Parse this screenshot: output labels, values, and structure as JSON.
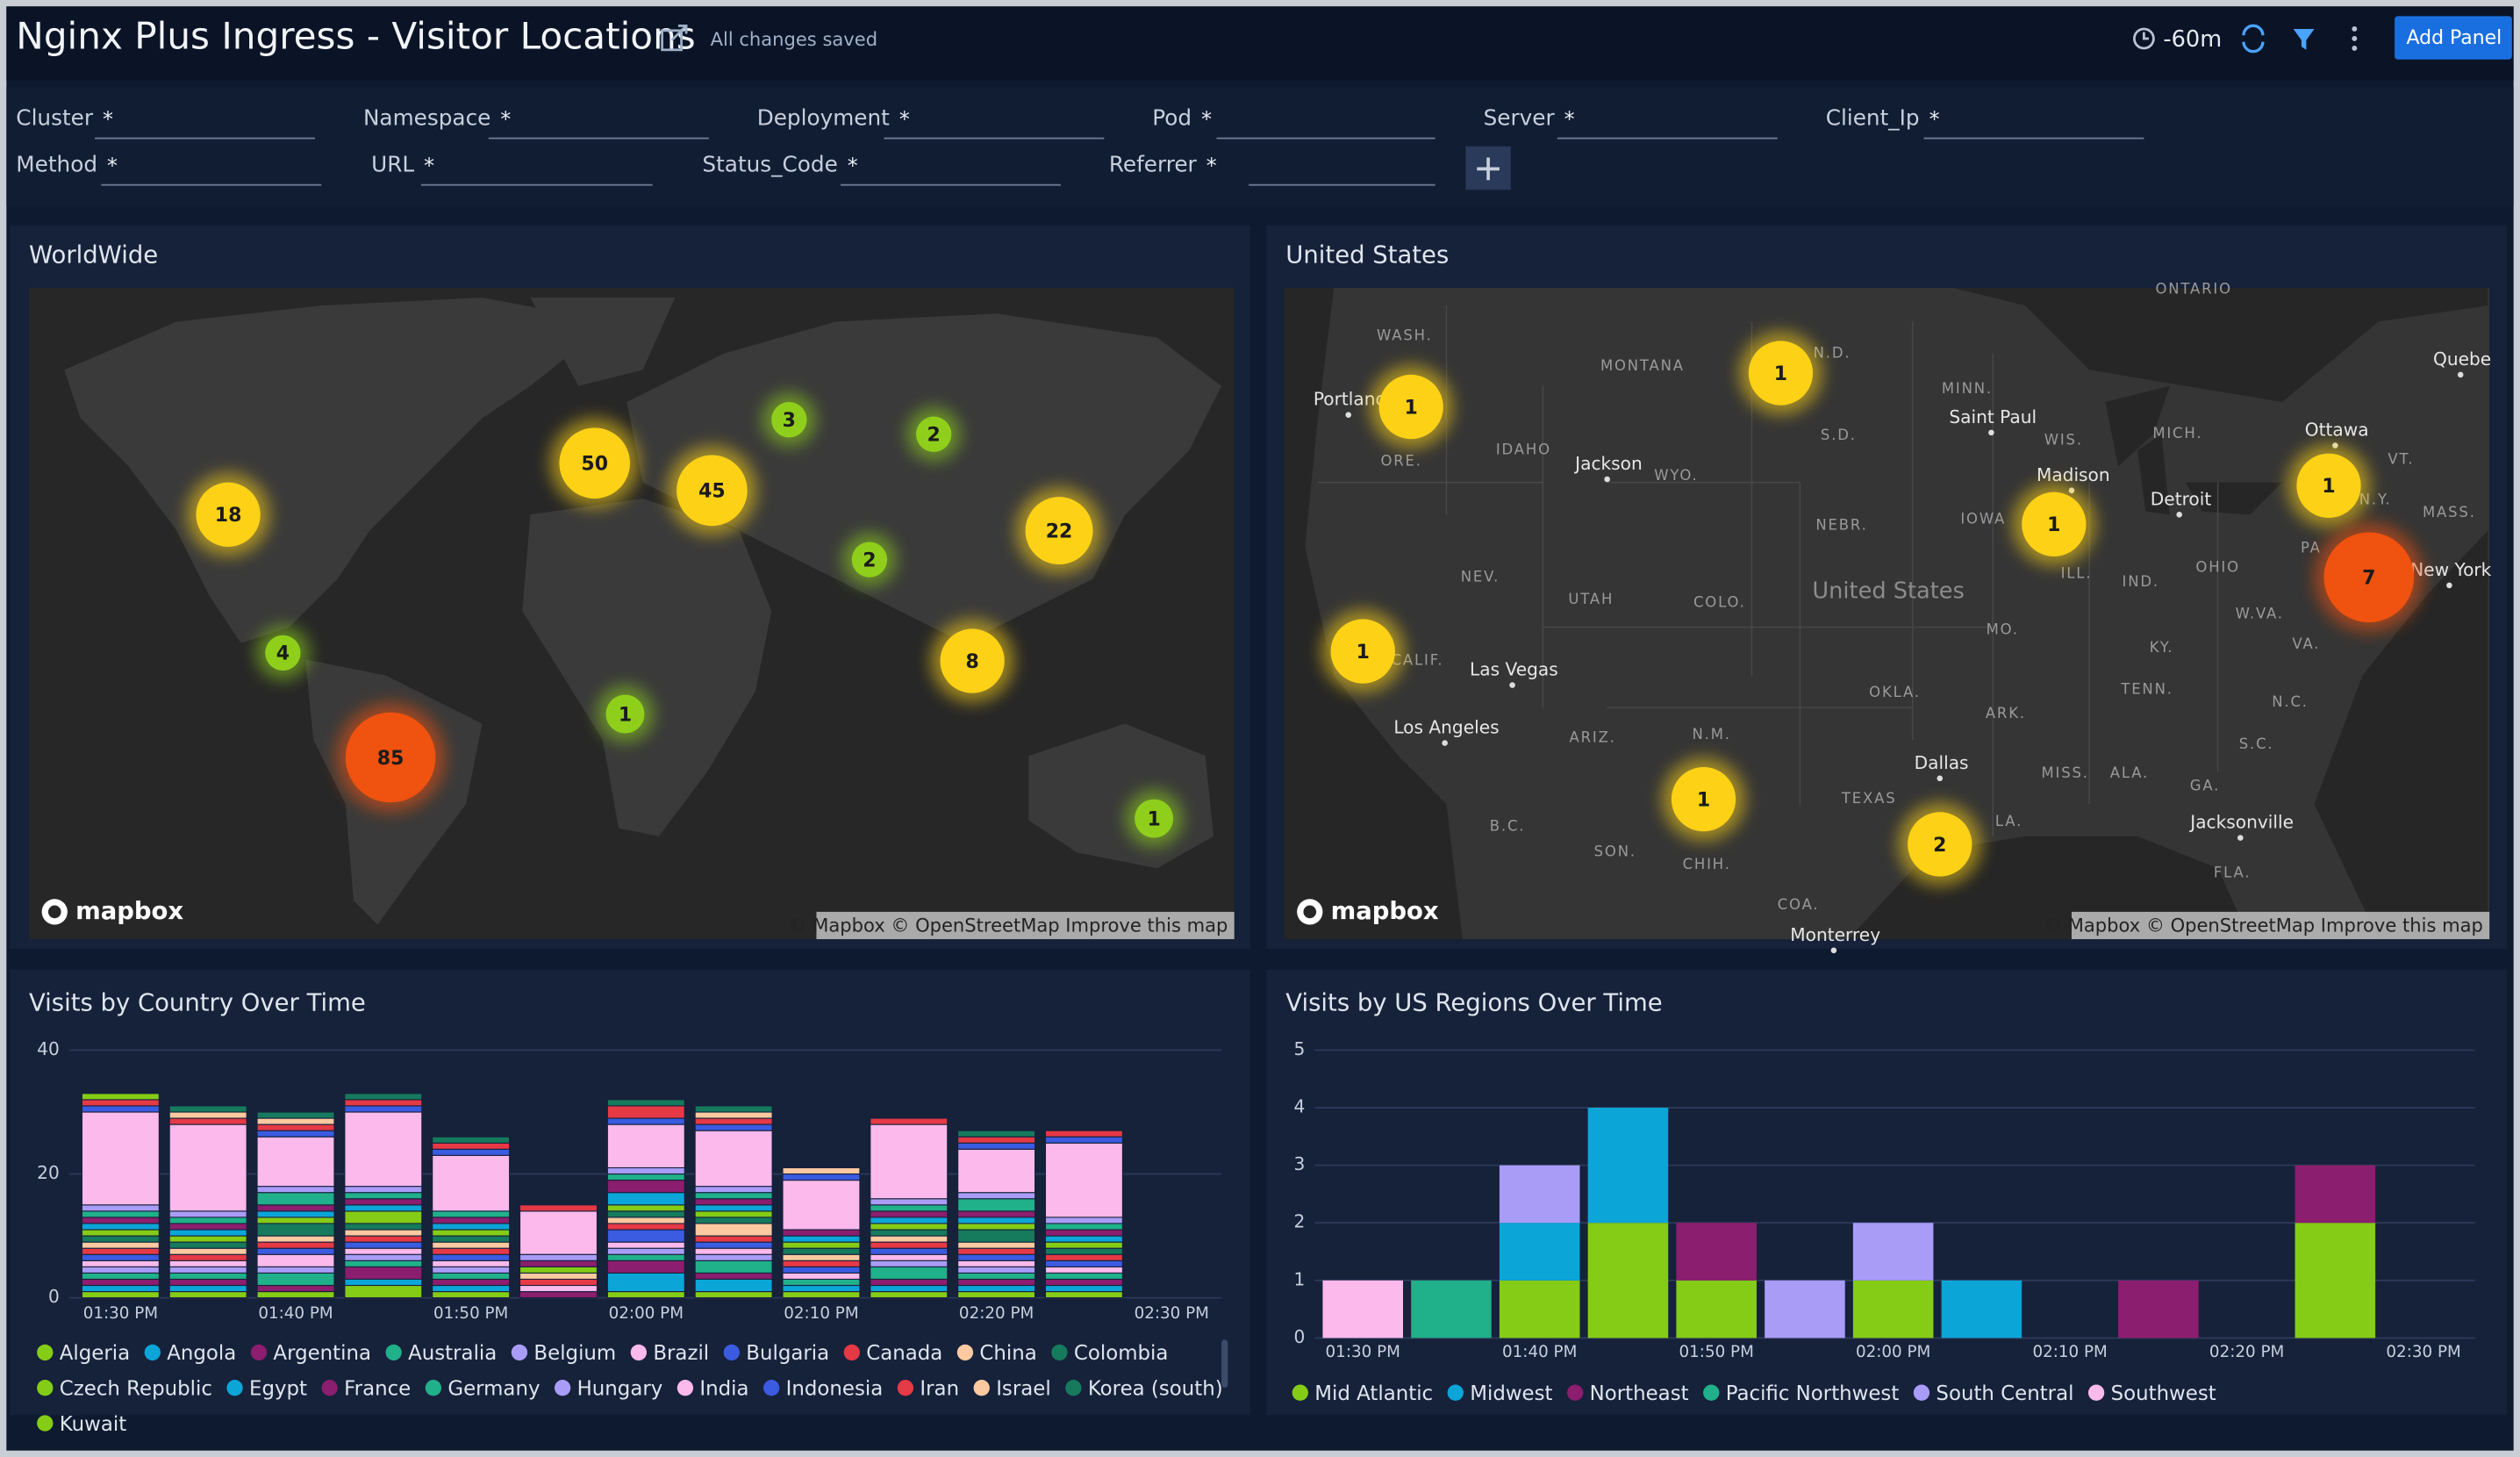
{
  "header": {
    "title": "Nginx Plus Ingress - Visitor Locations",
    "status": "All changes saved",
    "time_range": "-60m",
    "add_panel": "Add Panel"
  },
  "filters": [
    {
      "label": "Cluster",
      "value": "*"
    },
    {
      "label": "Namespace",
      "value": "*"
    },
    {
      "label": "Deployment",
      "value": "*"
    },
    {
      "label": "Pod",
      "value": "*"
    },
    {
      "label": "Server",
      "value": "*"
    },
    {
      "label": "Client_Ip",
      "value": "*"
    },
    {
      "label": "Method",
      "value": "*"
    },
    {
      "label": "URL",
      "value": "*"
    },
    {
      "label": "Status_Code",
      "value": "*"
    },
    {
      "label": "Referrer",
      "value": "*"
    }
  ],
  "maps": [
    {
      "title": "WorldWide",
      "logo": "mapbox",
      "attribution": "© Mapbox © OpenStreetMap Improve this map",
      "markers": [
        {
          "count": 18,
          "color": "#fcd116"
        },
        {
          "count": 50,
          "color": "#fcd116"
        },
        {
          "count": 45,
          "color": "#fcd116"
        },
        {
          "count": 3,
          "color": "#8fcf1b"
        },
        {
          "count": 2,
          "color": "#8fcf1b"
        },
        {
          "count": 22,
          "color": "#fcd116"
        },
        {
          "count": 2,
          "color": "#8fcf1b"
        },
        {
          "count": 4,
          "color": "#8fcf1b"
        },
        {
          "count": 8,
          "color": "#fcd116"
        },
        {
          "count": 1,
          "color": "#8fcf1b"
        },
        {
          "count": 85,
          "color": "#f0520f"
        },
        {
          "count": 1,
          "color": "#8fcf1b"
        }
      ],
      "labels": []
    },
    {
      "title": "United States",
      "logo": "mapbox",
      "attribution": "© Mapbox © OpenStreetMap Improve this map",
      "markers": [
        {
          "count": 1,
          "color": "#fcd116"
        },
        {
          "count": 1,
          "color": "#fcd116"
        },
        {
          "count": 1,
          "color": "#fcd116"
        },
        {
          "count": 1,
          "color": "#fcd116"
        },
        {
          "count": 7,
          "color": "#f0520f"
        },
        {
          "count": 1,
          "color": "#fcd116"
        },
        {
          "count": 1,
          "color": "#fcd116"
        },
        {
          "count": 2,
          "color": "#fcd116"
        }
      ],
      "labels": [
        "WASH.",
        "MONTANA",
        "N.D.",
        "MINN.",
        "Portland",
        "IDAHO",
        "ORE.",
        "S.D.",
        "Saint Paul",
        "WIS.",
        "MICH.",
        "Ottawa",
        "Quebe",
        "Jackson",
        "WYO.",
        "Madison",
        "Detroit",
        "NEBR.",
        "IOWA",
        "VT.",
        "N.Y.",
        "MASS.",
        "PA",
        "New York",
        "NEV.",
        "UTAH",
        "COLO.",
        "United States",
        "ILL.",
        "IND.",
        "OHIO",
        "W.VA.",
        "MO.",
        "KY.",
        "VA.",
        "CALIF.",
        "Las Vegas",
        "TENN.",
        "OKLA.",
        "N.C.",
        "Los Angeles",
        "ARIZ.",
        "N.M.",
        "ARK.",
        "S.C.",
        "Dallas",
        "MISS.",
        "ALA.",
        "GA.",
        "TEXAS",
        "LA.",
        "Jacksonville",
        "B.C.",
        "SON.",
        "CHIH.",
        "FLA.",
        "COA.",
        "Monterrey",
        "ONTARIO"
      ]
    }
  ],
  "chart_data": [
    {
      "type": "bar",
      "stacked": true,
      "title": "Visits by Country Over Time",
      "categories": [
        "01:30 PM",
        null,
        "01:40 PM",
        null,
        "01:50 PM",
        null,
        "02:00 PM",
        null,
        "02:10 PM",
        null,
        "02:20 PM",
        null,
        "02:30 PM"
      ],
      "ylim": [
        0,
        40
      ],
      "yticks": [
        0,
        20,
        40
      ],
      "grid": true,
      "series": [
        {
          "name": "Algeria",
          "color": "#84cc16",
          "values": [
            1,
            1,
            1,
            2,
            1,
            0,
            1,
            1,
            1,
            1,
            1,
            1,
            null
          ]
        },
        {
          "name": "Angola",
          "color": "#0ba5d8",
          "values": [
            1,
            1,
            0,
            1,
            1,
            0,
            3,
            2,
            1,
            1,
            1,
            1,
            null
          ]
        },
        {
          "name": "Argentina",
          "color": "#8b1e6e",
          "values": [
            1,
            1,
            1,
            2,
            1,
            1,
            2,
            1,
            0,
            1,
            1,
            1,
            null
          ]
        },
        {
          "name": "Australia",
          "color": "#20b08a",
          "values": [
            1,
            1,
            2,
            1,
            1,
            0,
            1,
            2,
            1,
            2,
            1,
            1,
            null
          ]
        },
        {
          "name": "Belgium",
          "color": "#a99cf7",
          "values": [
            1,
            1,
            1,
            1,
            1,
            0,
            1,
            1,
            0,
            1,
            1,
            0,
            null
          ]
        },
        {
          "name": "Brazil",
          "color": "#fbb9ec",
          "values": [
            1,
            1,
            2,
            1,
            1,
            1,
            1,
            1,
            1,
            1,
            1,
            1,
            null
          ]
        },
        {
          "name": "Bulgaria",
          "color": "#3b5be0",
          "values": [
            1,
            0,
            1,
            1,
            1,
            0,
            2,
            1,
            1,
            1,
            1,
            1,
            null
          ]
        },
        {
          "name": "Canada",
          "color": "#e53945",
          "values": [
            1,
            1,
            1,
            1,
            1,
            1,
            1,
            1,
            1,
            1,
            1,
            1,
            null
          ]
        },
        {
          "name": "China",
          "color": "#fcc9a0",
          "values": [
            1,
            1,
            1,
            1,
            1,
            1,
            1,
            2,
            1,
            1,
            1,
            0,
            null
          ]
        },
        {
          "name": "Colombia",
          "color": "#167a5d",
          "values": [
            1,
            1,
            2,
            1,
            1,
            0,
            1,
            1,
            1,
            1,
            2,
            1,
            null
          ]
        },
        {
          "name": "Czech Republic",
          "color": "#84cc16",
          "values": [
            1,
            1,
            1,
            2,
            1,
            1,
            1,
            1,
            1,
            1,
            1,
            1,
            null
          ]
        },
        {
          "name": "Egypt",
          "color": "#0ba5d8",
          "values": [
            1,
            1,
            1,
            1,
            1,
            0,
            2,
            1,
            1,
            1,
            1,
            1,
            null
          ]
        },
        {
          "name": "France",
          "color": "#8b1e6e",
          "values": [
            1,
            1,
            1,
            1,
            1,
            1,
            2,
            1,
            1,
            1,
            1,
            1,
            null
          ]
        },
        {
          "name": "Germany",
          "color": "#20b08a",
          "values": [
            1,
            1,
            2,
            1,
            1,
            0,
            1,
            1,
            0,
            1,
            2,
            1,
            null
          ]
        },
        {
          "name": "Hungary",
          "color": "#a99cf7",
          "values": [
            1,
            1,
            1,
            1,
            0,
            1,
            1,
            1,
            0,
            1,
            1,
            1,
            null
          ]
        },
        {
          "name": "India",
          "color": "#fbb9ec",
          "values": [
            15,
            14,
            8,
            12,
            9,
            7,
            7,
            9,
            8,
            12,
            7,
            12,
            null
          ]
        },
        {
          "name": "Indonesia",
          "color": "#3b5be0",
          "values": [
            1,
            0,
            1,
            1,
            1,
            0,
            1,
            1,
            1,
            0,
            1,
            1,
            null
          ]
        },
        {
          "name": "Iran",
          "color": "#e53945",
          "values": [
            1,
            1,
            1,
            1,
            1,
            1,
            2,
            1,
            0,
            1,
            1,
            1,
            null
          ]
        },
        {
          "name": "Israel",
          "color": "#fcc9a0",
          "values": [
            0,
            1,
            1,
            0,
            0,
            0,
            0,
            1,
            1,
            0,
            0,
            0,
            null
          ]
        },
        {
          "name": "Korea (south)",
          "color": "#167a5d",
          "values": [
            0,
            1,
            1,
            1,
            1,
            0,
            1,
            1,
            0,
            0,
            1,
            0,
            null
          ]
        },
        {
          "name": "Kuwait",
          "color": "#84cc16",
          "values": [
            1,
            0,
            0,
            0,
            0,
            0,
            0,
            0,
            0,
            0,
            0,
            0,
            null
          ]
        }
      ]
    },
    {
      "type": "bar",
      "stacked": true,
      "title": "Visits by US Regions Over Time",
      "categories": [
        "01:30 PM",
        null,
        "01:40 PM",
        null,
        "01:50 PM",
        null,
        "02:00 PM",
        null,
        "02:10 PM",
        null,
        "02:20 PM",
        null,
        "02:30 PM"
      ],
      "ylim": [
        0,
        5
      ],
      "yticks": [
        0,
        1,
        2,
        3,
        4,
        5
      ],
      "grid": true,
      "series": [
        {
          "name": "Mid Atlantic",
          "color": "#84cc16",
          "values": [
            0,
            0,
            1,
            2,
            1,
            0,
            1,
            0,
            0,
            0,
            0,
            2,
            null
          ]
        },
        {
          "name": "Midwest",
          "color": "#0ba5d8",
          "values": [
            0,
            0,
            1,
            2,
            0,
            0,
            0,
            1,
            0,
            0,
            0,
            0,
            null
          ]
        },
        {
          "name": "Northeast",
          "color": "#8b1e6e",
          "values": [
            0,
            0,
            0,
            0,
            1,
            0,
            0,
            0,
            0,
            1,
            0,
            1,
            null
          ]
        },
        {
          "name": "Pacific Northwest",
          "color": "#20b08a",
          "values": [
            0,
            1,
            0,
            0,
            0,
            0,
            0,
            0,
            0,
            0,
            0,
            0,
            null
          ]
        },
        {
          "name": "South Central",
          "color": "#a99cf7",
          "values": [
            0,
            0,
            1,
            0,
            0,
            1,
            1,
            0,
            0,
            0,
            0,
            0,
            null
          ]
        },
        {
          "name": "Southwest",
          "color": "#fbb9ec",
          "values": [
            1,
            0,
            0,
            0,
            0,
            0,
            0,
            0,
            0,
            0,
            0,
            0,
            null
          ]
        }
      ]
    }
  ]
}
